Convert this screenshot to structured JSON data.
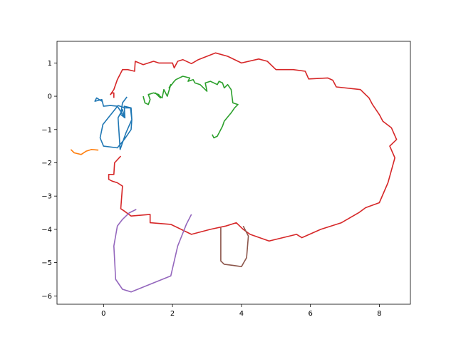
{
  "chart_data": {
    "type": "line",
    "title": "",
    "xlabel": "",
    "ylabel": "",
    "xlim": [
      -1.35,
      8.9
    ],
    "ylim": [
      -6.25,
      1.65
    ],
    "grid": false,
    "legend": "none",
    "xticks": [
      {
        "value": 0,
        "label": "0"
      },
      {
        "value": 2,
        "label": "2"
      },
      {
        "value": 4,
        "label": "4"
      },
      {
        "value": 6,
        "label": "6"
      },
      {
        "value": 8,
        "label": "8"
      }
    ],
    "yticks": [
      {
        "value": 1,
        "label": "1"
      },
      {
        "value": 0,
        "label": "0"
      },
      {
        "value": -1,
        "label": "−1"
      },
      {
        "value": -2,
        "label": "−2"
      },
      {
        "value": -3,
        "label": "−3"
      },
      {
        "value": -4,
        "label": "−4"
      },
      {
        "value": -5,
        "label": "−5"
      },
      {
        "value": -6,
        "label": "−6"
      }
    ],
    "series": [
      {
        "color": "#1f77b4",
        "x": [
          0.68,
          0.55,
          0.5,
          0.62,
          0.6,
          0.8,
          0.82,
          0.8,
          0.6,
          0.4,
          0.0,
          -0.1,
          -0.02,
          0.42,
          0.62,
          0.78,
          0.82,
          0.65,
          0.48,
          0.42,
          0.55,
          0.62,
          0.4,
          0.2,
          0.0,
          -0.05,
          -0.25,
          -0.2,
          -0.05
        ],
        "y": [
          -0.02,
          -0.2,
          -0.55,
          -0.65,
          -0.3,
          -0.35,
          -0.7,
          -1.0,
          -1.3,
          -1.55,
          -1.5,
          -1.25,
          -0.85,
          -0.28,
          -0.35,
          -0.35,
          -0.7,
          -1.1,
          -1.6,
          -0.65,
          -0.4,
          -0.65,
          -0.3,
          -0.28,
          -0.3,
          -0.1,
          -0.15,
          -0.05,
          -0.15
        ]
      },
      {
        "color": "#ff7f0e",
        "x": [
          -0.95,
          -0.85,
          -0.65,
          -0.5,
          -0.35,
          -0.15
        ],
        "y": [
          -1.6,
          -1.7,
          -1.75,
          -1.65,
          -1.6,
          -1.62
        ]
      },
      {
        "color": "#2ca02c",
        "x": [
          1.15,
          1.2,
          1.3,
          1.35,
          1.3,
          1.45,
          1.6,
          1.65,
          1.5,
          1.7,
          1.75,
          1.85,
          1.95,
          1.9,
          2.05,
          2.1,
          2.3,
          2.5,
          2.45,
          2.6,
          2.65,
          2.8,
          2.9,
          3.0,
          2.95,
          3.1,
          3.3,
          3.35,
          3.45,
          3.5,
          3.6,
          3.7,
          3.75,
          3.9,
          3.8,
          3.7,
          3.5,
          3.45,
          3.4,
          3.3,
          3.2,
          3.15
        ],
        "y": [
          0.0,
          -0.2,
          -0.25,
          -0.1,
          0.05,
          0.1,
          0.05,
          -0.05,
          0.1,
          -0.05,
          0.2,
          0.0,
          0.35,
          0.25,
          0.45,
          0.5,
          0.6,
          0.55,
          0.45,
          0.5,
          0.4,
          0.35,
          0.25,
          0.15,
          0.4,
          0.45,
          0.35,
          0.45,
          0.4,
          0.25,
          0.35,
          0.2,
          -0.2,
          -0.25,
          -0.35,
          -0.5,
          -0.75,
          -0.9,
          -1.0,
          -1.2,
          -1.25,
          -1.15
        ]
      },
      {
        "color": "#d62728",
        "x": [
          0.3,
          0.3,
          0.25,
          0.2,
          0.3,
          0.4,
          0.55,
          0.7,
          0.9,
          0.92,
          1.15,
          1.45,
          1.6,
          2.0,
          2.05,
          2.15,
          2.3,
          2.55,
          2.75,
          3.0,
          3.25,
          3.6,
          4.0,
          4.5,
          4.75,
          5.0,
          5.5,
          5.85,
          5.95,
          6.5,
          6.65,
          6.75,
          7.45,
          7.7,
          7.8,
          8.0,
          8.1,
          8.35,
          8.5,
          8.3,
          8.45,
          8.25,
          8.0,
          7.6,
          7.4,
          6.9,
          6.3,
          5.75,
          5.6,
          4.8,
          4.25,
          4.05,
          3.85,
          3.55,
          3.1,
          2.55,
          1.95,
          1.35,
          1.35,
          0.8,
          0.6,
          0.5,
          0.55,
          0.4,
          0.25,
          0.15,
          0.15,
          0.3,
          0.32,
          0.5
        ],
        "y": [
          -0.05,
          0.1,
          0.1,
          0.05,
          0.2,
          0.5,
          0.8,
          0.8,
          0.75,
          1.05,
          0.95,
          1.05,
          1.0,
          1.0,
          0.85,
          1.05,
          1.1,
          0.98,
          1.1,
          1.2,
          1.3,
          1.2,
          1.0,
          1.12,
          1.05,
          0.8,
          0.8,
          0.75,
          0.52,
          0.55,
          0.48,
          0.28,
          0.2,
          -0.05,
          -0.25,
          -0.55,
          -0.75,
          -0.95,
          -1.3,
          -1.5,
          -1.85,
          -2.6,
          -3.2,
          -3.35,
          -3.5,
          -3.8,
          -4.0,
          -4.25,
          -4.15,
          -4.35,
          -4.15,
          -4.0,
          -3.8,
          -3.9,
          -4.0,
          -4.15,
          -3.85,
          -3.8,
          -3.55,
          -3.6,
          -3.45,
          -3.38,
          -2.7,
          -2.6,
          -2.55,
          -2.5,
          -2.35,
          -2.35,
          -2.0,
          -1.8
        ]
      },
      {
        "color": "#9467bd",
        "x": [
          0.95,
          0.75,
          0.55,
          0.4,
          0.3,
          0.35,
          0.55,
          0.8,
          1.95,
          2.15,
          2.4,
          2.55
        ],
        "y": [
          -3.4,
          -3.5,
          -3.7,
          -3.9,
          -4.5,
          -5.5,
          -5.8,
          -5.88,
          -5.4,
          -4.5,
          -3.85,
          -3.55
        ]
      },
      {
        "color": "#8c564b",
        "x": [
          3.4,
          3.4,
          3.5,
          3.75,
          4.0,
          4.15,
          4.2,
          4.05
        ],
        "y": [
          -3.95,
          -4.95,
          -5.05,
          -5.08,
          -5.12,
          -4.85,
          -4.2,
          -3.9
        ]
      }
    ]
  }
}
